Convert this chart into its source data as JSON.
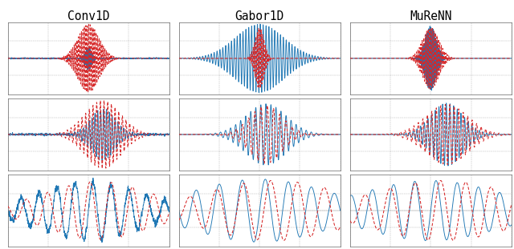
{
  "titles": [
    "Conv1D",
    "Gabor1D",
    "MuReNN"
  ],
  "background_color": "#ffffff",
  "blue_color": "#1f77b4",
  "red_color": "#d62728",
  "grid_color": "#888888",
  "figsize": [
    6.4,
    3.11
  ],
  "dpi": 100
}
